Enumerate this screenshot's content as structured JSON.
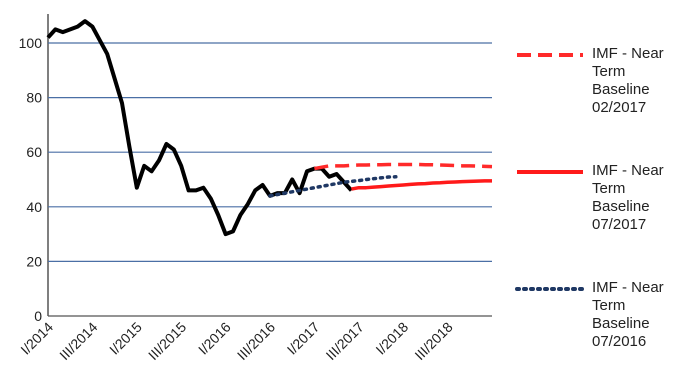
{
  "chart_data": {
    "type": "line",
    "categories": [
      "I/2014",
      null,
      null,
      null,
      null,
      null,
      "III/2014",
      null,
      null,
      null,
      null,
      null,
      "I/2015",
      null,
      null,
      null,
      null,
      null,
      "III/2015",
      null,
      null,
      null,
      null,
      null,
      "I/2016",
      null,
      null,
      null,
      null,
      null,
      "III/2016",
      null,
      null,
      null,
      null,
      null,
      "I/2017",
      null,
      null,
      null,
      null,
      null,
      "III/2017",
      null,
      null,
      null,
      null,
      null,
      "I/2018",
      null,
      null,
      null,
      null,
      null,
      "III/2018",
      null,
      null,
      null,
      null,
      null,
      null
    ],
    "series": [
      {
        "name": null,
        "color": "#000000",
        "style": "solid",
        "values": [
          102,
          105,
          104,
          105,
          106,
          108,
          106,
          101,
          96,
          87,
          78,
          62,
          47,
          55,
          53,
          57,
          63,
          61,
          55,
          46,
          46,
          47,
          43,
          37,
          30,
          31,
          37,
          41,
          46,
          48,
          44,
          45,
          45,
          50,
          45,
          53,
          54,
          54,
          51,
          52,
          49,
          46,
          null,
          null,
          null,
          null,
          null,
          null,
          null,
          null,
          null,
          null,
          null,
          null,
          null,
          null,
          null,
          null,
          null,
          null,
          null
        ]
      },
      {
        "name": "IMF - Near Term Baseline 02/2017",
        "color": "#ff2a2a",
        "style": "dashed",
        "values": [
          null,
          null,
          null,
          null,
          null,
          null,
          null,
          null,
          null,
          null,
          null,
          null,
          null,
          null,
          null,
          null,
          null,
          null,
          null,
          null,
          null,
          null,
          null,
          null,
          null,
          null,
          null,
          null,
          null,
          null,
          null,
          null,
          null,
          null,
          null,
          null,
          54,
          54.5,
          55,
          55,
          55,
          55.2,
          55.3,
          55.3,
          55.4,
          55.4,
          55.5,
          55.5,
          55.5,
          55.5,
          55.5,
          55.4,
          55.4,
          55.3,
          55.2,
          55.1,
          55,
          55,
          54.9,
          54.8,
          54.7
        ]
      },
      {
        "name": "IMF - Near Term Baseline 07/2017",
        "color": "#ff1a1a",
        "style": "solid",
        "values": [
          null,
          null,
          null,
          null,
          null,
          null,
          null,
          null,
          null,
          null,
          null,
          null,
          null,
          null,
          null,
          null,
          null,
          null,
          null,
          null,
          null,
          null,
          null,
          null,
          null,
          null,
          null,
          null,
          null,
          null,
          null,
          null,
          null,
          null,
          null,
          null,
          null,
          null,
          null,
          null,
          null,
          46.5,
          47,
          47,
          47.2,
          47.4,
          47.6,
          47.8,
          48,
          48.2,
          48.4,
          48.5,
          48.7,
          48.8,
          49,
          49.1,
          49.2,
          49.3,
          49.4,
          49.5,
          49.5
        ]
      },
      {
        "name": "IMF - Near Term Baseline 07/2016",
        "color": "#1f3864",
        "style": "dotted",
        "values": [
          null,
          null,
          null,
          null,
          null,
          null,
          null,
          null,
          null,
          null,
          null,
          null,
          null,
          null,
          null,
          null,
          null,
          null,
          null,
          null,
          null,
          null,
          null,
          null,
          null,
          null,
          null,
          null,
          null,
          null,
          44,
          44.5,
          45,
          45.5,
          46,
          46.5,
          47,
          47.5,
          48,
          48.5,
          49,
          49.3,
          49.6,
          50,
          50.3,
          50.6,
          50.9,
          51,
          null,
          null,
          null,
          null,
          null,
          null,
          null,
          null,
          null,
          null,
          null,
          null,
          null
        ]
      }
    ],
    "ylim": [
      0,
      110
    ],
    "yticks": [
      0,
      20,
      40,
      60,
      80,
      100
    ],
    "grid": true,
    "legend": "right"
  }
}
